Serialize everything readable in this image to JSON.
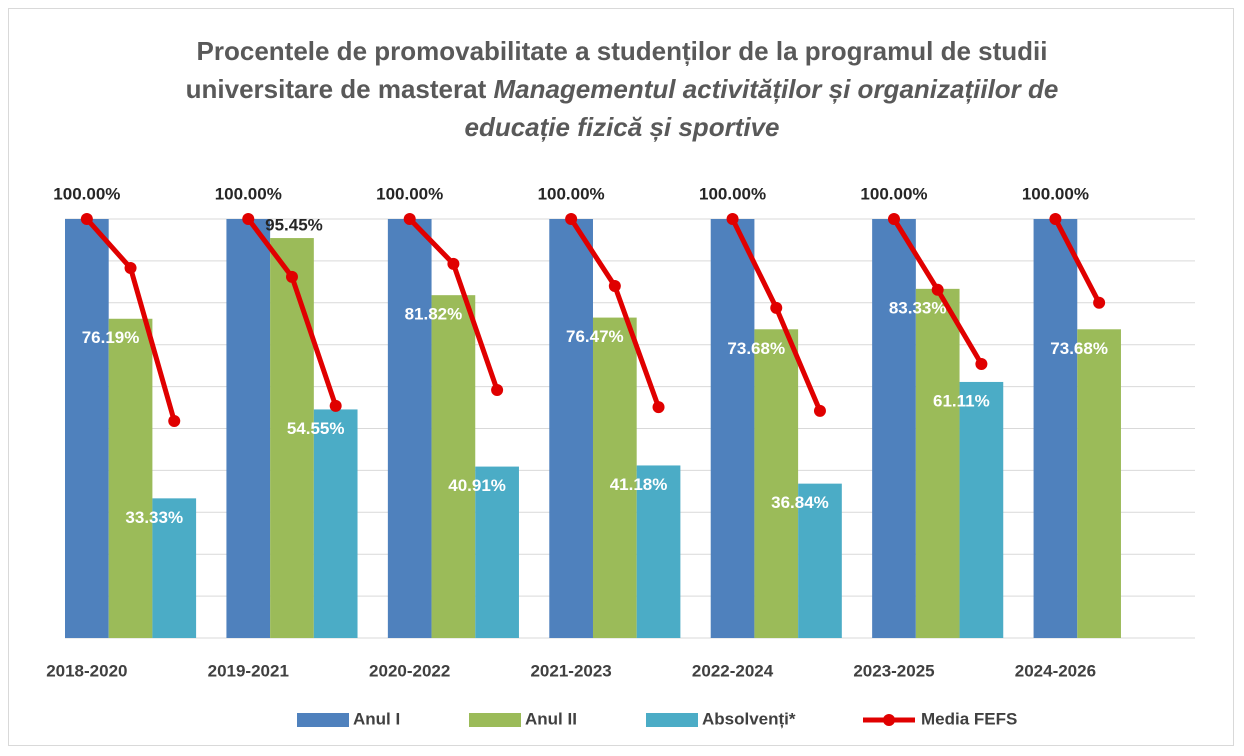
{
  "chart_data": {
    "type": "bar",
    "title": [
      "Procentele de promovabilitate a studenților de la programul de studii universitare de masterat",
      "Managementul activităților și organizațiilor de educație fizică și sportive"
    ],
    "categories": [
      "2018-2020",
      "2019-2021",
      "2020-2022",
      "2021-2023",
      "2022-2024",
      "2023-2025",
      "2024-2026"
    ],
    "series": [
      {
        "name": "Anul I",
        "color": "#4f81bd",
        "values": [
          100,
          100,
          100,
          100,
          100,
          100,
          100
        ],
        "value_labels": [
          "100.00%",
          "100.00%",
          "100.00%",
          "100.00%",
          "100.00%",
          "100.00%",
          "100.00%"
        ]
      },
      {
        "name": "Anul II",
        "color": "#9bbb59",
        "values": [
          76.19,
          95.45,
          81.82,
          76.47,
          73.68,
          83.33,
          73.68
        ],
        "value_labels": [
          "76.19%",
          "95.45%",
          "81.82%",
          "76.47%",
          "73.68%",
          "83.33%",
          "73.68%"
        ]
      },
      {
        "name": "Absolvenți*",
        "color": "#4bacc6",
        "values": [
          33.33,
          54.55,
          40.91,
          41.18,
          36.84,
          61.11,
          null
        ],
        "value_labels": [
          "33.33%",
          "54.55%",
          "40.91%",
          "41.18%",
          "36.84%",
          "61.11%",
          null
        ]
      },
      {
        "name": "Media FEFS",
        "color": "#e00000",
        "type": "line",
        "values": [
          [
            100,
            88.3,
            51.8
          ],
          [
            100,
            86.2,
            55.4
          ],
          [
            100,
            89.3,
            59.2
          ],
          [
            100,
            84.0,
            55.1
          ],
          [
            100,
            78.8,
            54.2
          ],
          [
            100,
            83.1,
            65.4
          ],
          [
            100,
            80.0,
            null
          ]
        ]
      }
    ],
    "ylim": [
      0,
      100
    ],
    "yticks": [
      0,
      10,
      20,
      30,
      40,
      50,
      60,
      70,
      80,
      90,
      100
    ],
    "grid": true,
    "legend": "bottom"
  }
}
